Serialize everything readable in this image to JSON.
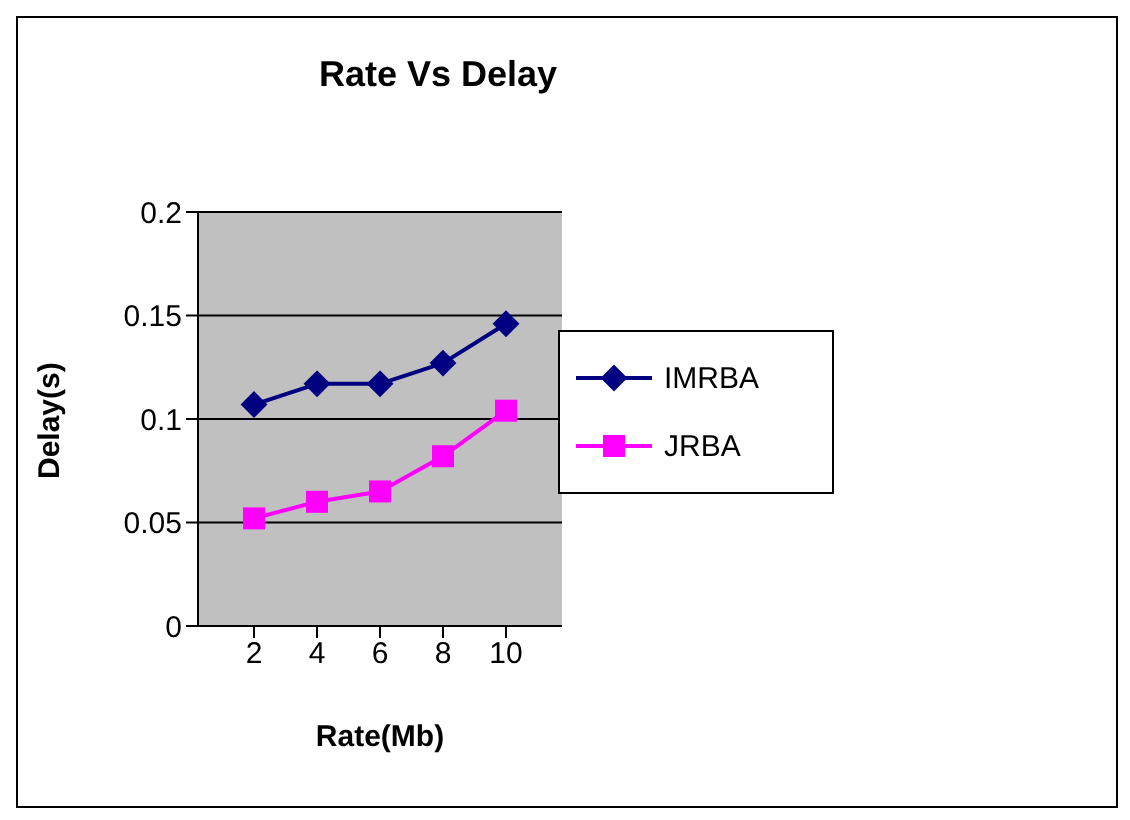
{
  "chart_data": {
    "type": "line",
    "title": "Rate Vs Delay",
    "xlabel": "Rate(Mb)",
    "ylabel": "Delay(s)",
    "categories": [
      "2",
      "4",
      "6",
      "8",
      "10"
    ],
    "series": [
      {
        "name": "IMRBA",
        "color": "#000080",
        "marker": "diamond",
        "values": [
          0.107,
          0.117,
          0.117,
          0.127,
          0.146
        ]
      },
      {
        "name": "JRBA",
        "color": "#ff00ff",
        "marker": "square",
        "values": [
          0.052,
          0.06,
          0.065,
          0.082,
          0.104
        ]
      }
    ],
    "ylim": [
      0,
      0.2
    ],
    "yticks": [
      0,
      0.05,
      0.1,
      0.15,
      0.2
    ],
    "grid": "y",
    "legend": "right"
  }
}
